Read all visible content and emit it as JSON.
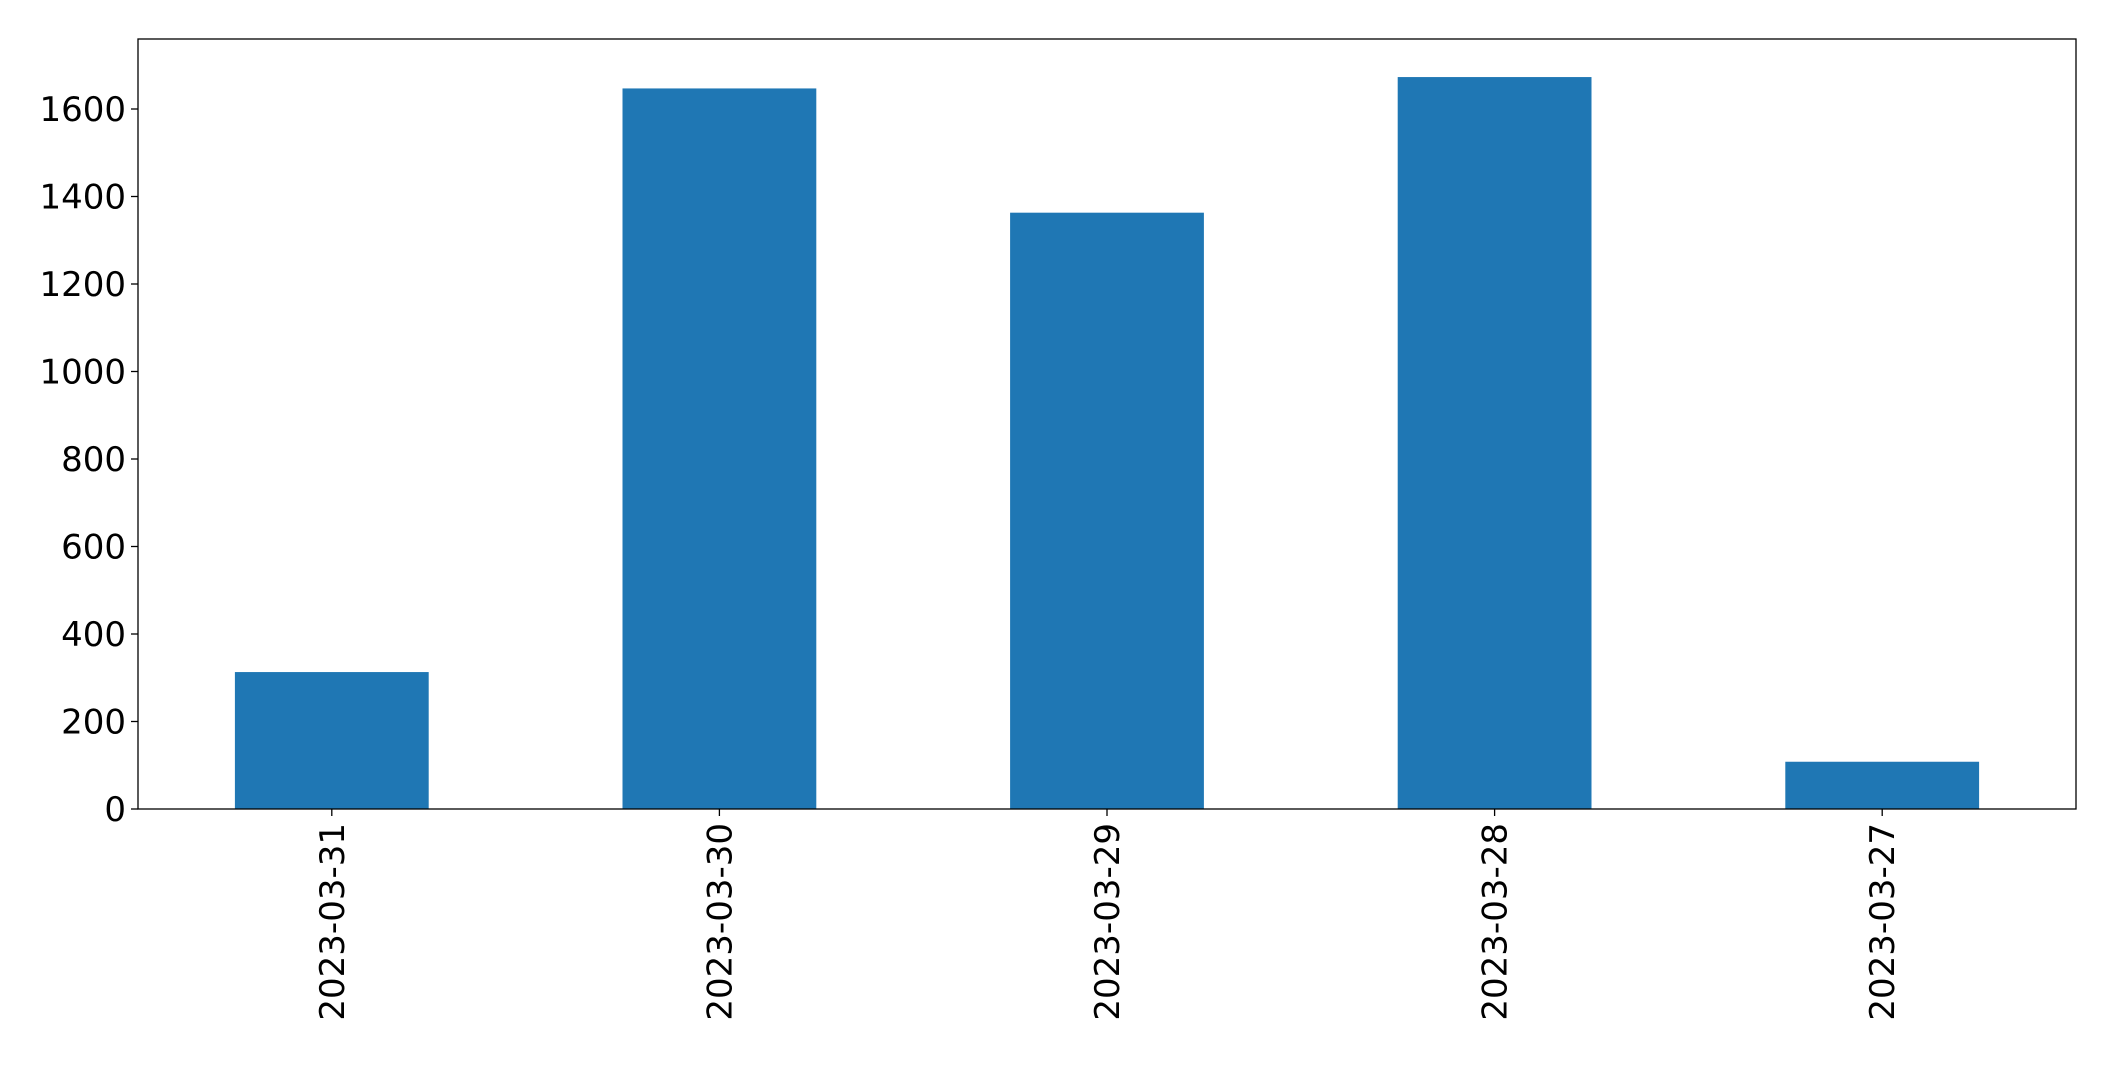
{
  "chart_data": {
    "type": "bar",
    "title": "",
    "xlabel": "",
    "ylabel": "",
    "categories": [
      "2023-03-31",
      "2023-03-30",
      "2023-03-29",
      "2023-03-28",
      "2023-03-27"
    ],
    "values": [
      313,
      1647,
      1363,
      1673,
      108
    ],
    "ylim": [
      0,
      1760
    ],
    "yticks": [
      0,
      200,
      400,
      600,
      800,
      1000,
      1200,
      1400,
      1600
    ],
    "bar_color": "#1f77b4",
    "grid": false,
    "legend": "none"
  }
}
